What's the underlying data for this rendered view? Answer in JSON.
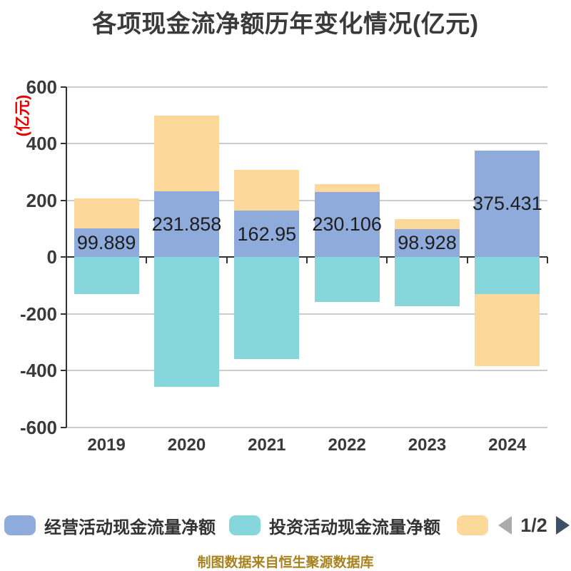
{
  "title": "各项现金流净额历年变化情况(亿元)",
  "y_axis_name": "(亿元)",
  "footer": "制图数据来自恒生聚源数据库",
  "colors": {
    "background": "#FFFFFF",
    "title_text": "#3A3A3A",
    "axis_text": "#3A3A3A",
    "value_label_text": "#1E1E1E",
    "grid_line": "#CBCBCB",
    "axis_line": "#333333",
    "y_axis_name_red": "#E60000",
    "footer_text": "#A8821E",
    "legend_text": "#333333",
    "pager_prev_arrow": "#ABABAB",
    "pager_next_arrow": "#3D5166",
    "series_operating": "#8EABDB",
    "series_investing": "#87D6DB",
    "series_financing": "#FCD99B"
  },
  "legend": {
    "items": [
      {
        "label": "经营活动现金流量净额",
        "color": "#8EABDB"
      },
      {
        "label": "投资活动现金流量净额",
        "color": "#87D6DB"
      },
      {
        "label": "",
        "color": "#FCD99B"
      }
    ],
    "pager": {
      "page_indicator": "1/2"
    }
  },
  "chart_data": {
    "type": "bar",
    "stacked": true,
    "categories": [
      "2019",
      "2020",
      "2021",
      "2022",
      "2023",
      "2024"
    ],
    "series": [
      {
        "name": "经营活动现金流量净额",
        "color": "#8EABDB",
        "values": [
          99.889,
          231.858,
          162.95,
          230.106,
          98.928,
          375.431
        ],
        "data_labels": [
          "99.889",
          "231.858",
          "162.95",
          "230.106",
          "98.928",
          "375.431"
        ]
      },
      {
        "name": "投资活动现金流量净额",
        "color": "#87D6DB",
        "values": [
          -131,
          -458,
          -359,
          -158,
          -173,
          -131
        ]
      },
      {
        "name": "",
        "color": "#FCD99B",
        "values": [
          106,
          266,
          144,
          27,
          34,
          -254
        ]
      }
    ],
    "ylabel": "(亿元)",
    "ylim": [
      -600,
      600
    ],
    "y_ticks": [
      600,
      400,
      200,
      0,
      -200,
      -400,
      -600
    ],
    "grid": true,
    "legend_position": "bottom"
  }
}
